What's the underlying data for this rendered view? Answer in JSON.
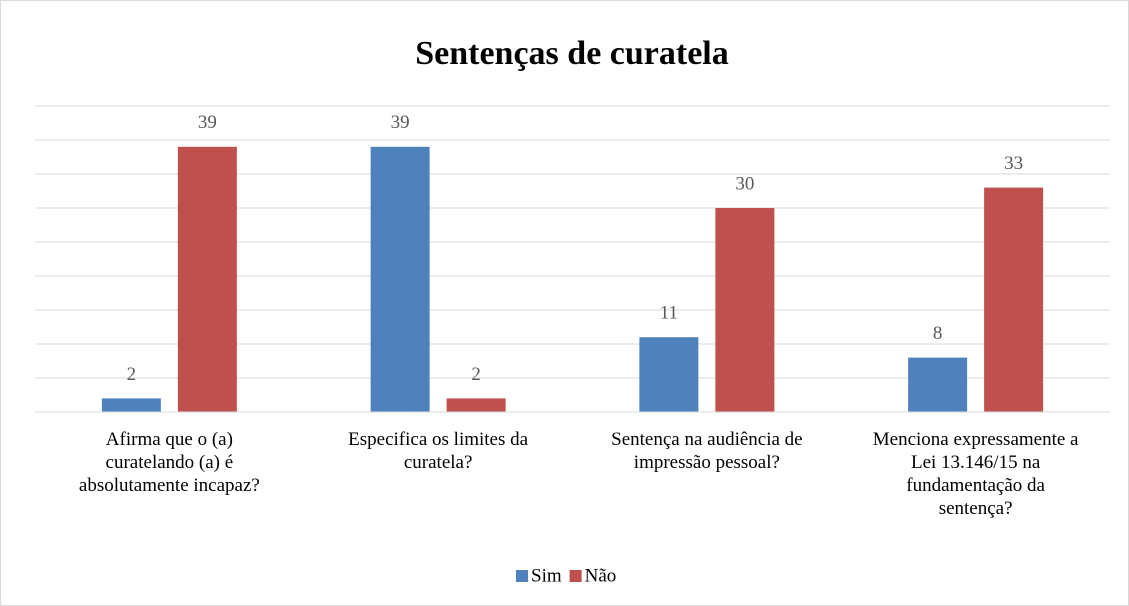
{
  "chart_data": {
    "type": "bar",
    "title": "Sentenças de curatela",
    "categories": [
      "Afirma que o (a)\ncuratelando (a) é\nabsolutamente incapaz?",
      "Especifica os limites da\ncuratela?",
      "Sentença na audiência de\nimpressão pessoal?",
      "Menciona expressamente a\nLei 13.146/15 na\nfundamentação da\nsentença?"
    ],
    "series": [
      {
        "name": "Sim",
        "color": "#4f81bd",
        "values": [
          2,
          39,
          11,
          8
        ]
      },
      {
        "name": "Não",
        "color": "#c0504d",
        "values": [
          39,
          2,
          30,
          33
        ]
      }
    ],
    "ylim": [
      0,
      45
    ],
    "yticks": [
      0,
      5,
      10,
      15,
      20,
      25,
      30,
      35,
      40,
      45
    ],
    "grid": true,
    "legend": "bottom"
  }
}
